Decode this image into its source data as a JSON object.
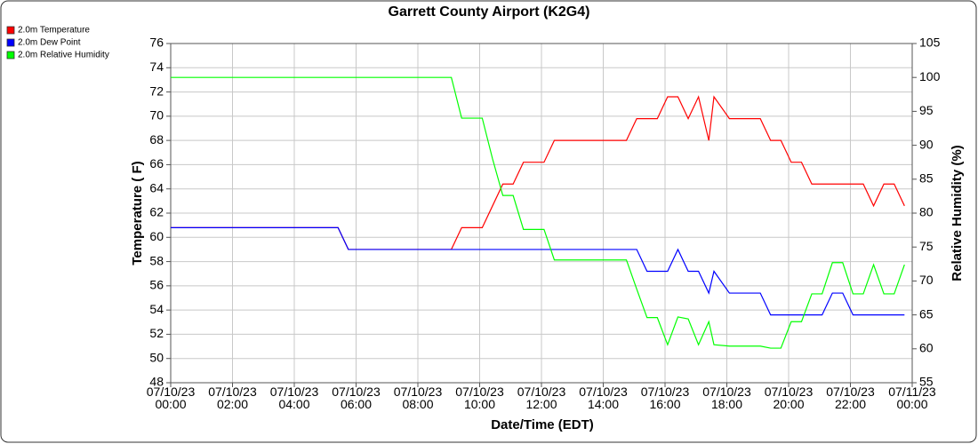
{
  "chart_data": {
    "type": "line",
    "title": "Garrett County Airport (K2G4)",
    "x_label": "Date/Time (EDT)",
    "y_label": "Temperature ( F)",
    "y2_label": "Relative Humidity (%)",
    "grid": true,
    "legend": "top-left",
    "xlim": [
      "07/10/23 00:00",
      "07/11/23 00:00"
    ],
    "xticks": [
      "07/10/23 00:00",
      "07/10/23 02:00",
      "07/10/23 04:00",
      "07/10/23 06:00",
      "07/10/23 08:00",
      "07/10/23 10:00",
      "07/10/23 12:00",
      "07/10/23 14:00",
      "07/10/23 16:00",
      "07/10/23 18:00",
      "07/10/23 20:00",
      "07/10/23 22:00",
      "07/11/23 00:00"
    ],
    "ylim": [
      48,
      76
    ],
    "yticks": [
      48,
      50,
      52,
      54,
      56,
      58,
      60,
      62,
      64,
      66,
      68,
      70,
      72,
      74,
      76
    ],
    "y2lim": [
      55,
      105
    ],
    "y2ticks": [
      55,
      60,
      65,
      70,
      75,
      80,
      85,
      90,
      95,
      100,
      105
    ],
    "x": [
      "07/10/23 00:00",
      "07/10/23 05:25",
      "07/10/23 05:45",
      "07/10/23 09:05",
      "07/10/23 09:25",
      "07/10/23 10:05",
      "07/10/23 10:25",
      "07/10/23 10:45",
      "07/10/23 11:05",
      "07/10/23 11:25",
      "07/10/23 12:05",
      "07/10/23 12:25",
      "07/10/23 14:45",
      "07/10/23 15:05",
      "07/10/23 15:25",
      "07/10/23 15:45",
      "07/10/23 16:05",
      "07/10/23 16:25",
      "07/10/23 16:45",
      "07/10/23 17:05",
      "07/10/23 17:25",
      "07/10/23 17:35",
      "07/10/23 18:05",
      "07/10/23 19:05",
      "07/10/23 19:25",
      "07/10/23 19:45",
      "07/10/23 20:05",
      "07/10/23 20:25",
      "07/10/23 20:45",
      "07/10/23 21:05",
      "07/10/23 21:25",
      "07/10/23 21:45",
      "07/10/23 22:05",
      "07/10/23 22:25",
      "07/10/23 22:45",
      "07/10/23 23:05",
      "07/10/23 23:25",
      "07/10/23 23:45"
    ],
    "series": [
      {
        "name": "2.0m Temperature",
        "color": "#ff0000",
        "values": [
          60.8,
          60.8,
          59,
          59,
          60.8,
          60.8,
          62.6,
          64.4,
          64.4,
          66.2,
          66.2,
          68,
          68,
          69.8,
          69.8,
          69.8,
          71.6,
          71.6,
          69.8,
          71.6,
          68,
          71.6,
          69.8,
          69.8,
          68,
          68,
          66.2,
          66.2,
          64.4,
          64.4,
          64.4,
          64.4,
          64.4,
          64.4,
          62.6,
          64.4,
          64.4,
          62.6
        ]
      },
      {
        "name": "2.0m Dew Point",
        "color": "#0000ff",
        "values": [
          60.8,
          60.8,
          59,
          59,
          59,
          59,
          59,
          59,
          59,
          59,
          59,
          59,
          59,
          59,
          57.2,
          57.2,
          57.2,
          59,
          57.2,
          57.2,
          55.4,
          57.2,
          55.4,
          55.4,
          53.6,
          53.6,
          53.6,
          53.6,
          53.6,
          53.6,
          55.4,
          55.4,
          53.6,
          53.6,
          53.6,
          53.6,
          53.6,
          53.6
        ]
      },
      {
        "name": "2.0m Relative Humidity",
        "color": "#00ff00",
        "axis": "y2",
        "values": [
          100,
          100,
          100,
          100,
          94,
          94,
          88,
          82.6,
          82.6,
          77.6,
          77.6,
          73.1,
          73.1,
          68.8,
          64.6,
          64.6,
          60.6,
          64.7,
          64.4,
          60.6,
          64,
          60.6,
          60.4,
          60.4,
          60.1,
          60.1,
          64,
          64,
          68.1,
          68.1,
          72.7,
          72.7,
          68.1,
          68.1,
          72.4,
          68.1,
          68.1,
          72.4
        ]
      }
    ]
  }
}
